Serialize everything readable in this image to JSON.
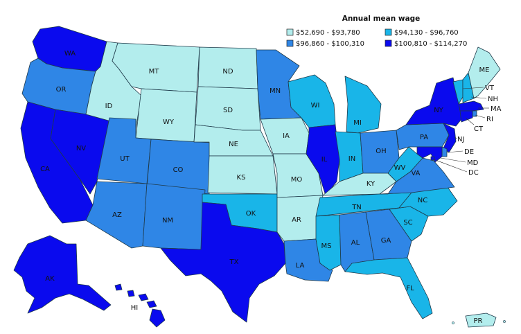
{
  "legend": {
    "title": "Annual mean wage",
    "bins": [
      {
        "label": "$52,690 - $93,780",
        "color": "#b3eded"
      },
      {
        "label": "$94,130 - $96,760",
        "color": "#19b5e8"
      },
      {
        "label": "$96,860 - $100,310",
        "color": "#2f86e6"
      },
      {
        "label": "$100,810 - $114,270",
        "color": "#0a0aee"
      }
    ]
  },
  "states": {
    "WA": {
      "label": "WA",
      "bin": 3
    },
    "OR": {
      "label": "OR",
      "bin": 2
    },
    "CA": {
      "label": "CA",
      "bin": 3
    },
    "NV": {
      "label": "NV",
      "bin": 3
    },
    "ID": {
      "label": "ID",
      "bin": 0
    },
    "MT": {
      "label": "MT",
      "bin": 0
    },
    "WY": {
      "label": "WY",
      "bin": 0
    },
    "UT": {
      "label": "UT",
      "bin": 2
    },
    "CO": {
      "label": "CO",
      "bin": 2
    },
    "AZ": {
      "label": "AZ",
      "bin": 2
    },
    "NM": {
      "label": "NM",
      "bin": 2
    },
    "ND": {
      "label": "ND",
      "bin": 0
    },
    "SD": {
      "label": "SD",
      "bin": 0
    },
    "NE": {
      "label": "NE",
      "bin": 0
    },
    "KS": {
      "label": "KS",
      "bin": 0
    },
    "OK": {
      "label": "OK",
      "bin": 1
    },
    "TX": {
      "label": "TX",
      "bin": 3
    },
    "MN": {
      "label": "MN",
      "bin": 2
    },
    "IA": {
      "label": "IA",
      "bin": 0
    },
    "MO": {
      "label": "MO",
      "bin": 0
    },
    "AR": {
      "label": "AR",
      "bin": 0
    },
    "LA": {
      "label": "LA",
      "bin": 2
    },
    "WI": {
      "label": "WI",
      "bin": 1
    },
    "IL": {
      "label": "IL",
      "bin": 3
    },
    "MI": {
      "label": "MI",
      "bin": 1
    },
    "IN": {
      "label": "IN",
      "bin": 1
    },
    "OH": {
      "label": "OH",
      "bin": 2
    },
    "KY": {
      "label": "KY",
      "bin": 0
    },
    "TN": {
      "label": "TN",
      "bin": 1
    },
    "MS": {
      "label": "MS",
      "bin": 1
    },
    "AL": {
      "label": "AL",
      "bin": 2
    },
    "GA": {
      "label": "GA",
      "bin": 2
    },
    "FL": {
      "label": "FL",
      "bin": 1
    },
    "SC": {
      "label": "SC",
      "bin": 1
    },
    "NC": {
      "label": "NC",
      "bin": 1
    },
    "VA": {
      "label": "VA",
      "bin": 2
    },
    "WV": {
      "label": "WV",
      "bin": 1
    },
    "PA": {
      "label": "PA",
      "bin": 2
    },
    "NY": {
      "label": "NY",
      "bin": 3
    },
    "NJ": {
      "label": "NJ",
      "bin": 3
    },
    "DE": {
      "label": "DE",
      "bin": 2
    },
    "MD": {
      "label": "MD",
      "bin": 3
    },
    "DC": {
      "label": "DC",
      "bin": 3
    },
    "VT": {
      "label": "VT",
      "bin": 1
    },
    "NH": {
      "label": "NH",
      "bin": 1
    },
    "MA": {
      "label": "MA",
      "bin": 3
    },
    "RI": {
      "label": "RI",
      "bin": 2
    },
    "CT": {
      "label": "CT",
      "bin": 3
    },
    "ME": {
      "label": "ME",
      "bin": 0
    },
    "AK": {
      "label": "AK",
      "bin": 3
    },
    "HI": {
      "label": "HI",
      "bin": 3
    },
    "PR": {
      "label": "PR",
      "bin": 0
    }
  }
}
